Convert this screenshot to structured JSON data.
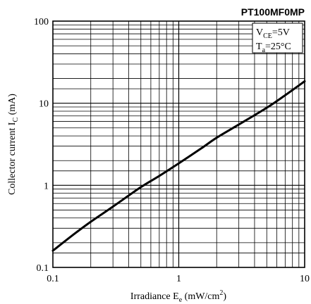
{
  "chart_data": {
    "type": "line",
    "title": "PT100MF0MP",
    "xlabel": {
      "main": "Irradiance E",
      "sub": "e",
      "unit_prefix": " (mW/cm",
      "sup": "2",
      "unit_suffix": ")"
    },
    "ylabel": {
      "main": "Collector current I",
      "sub": "C",
      "unit": " (mA)"
    },
    "x_scale": "log",
    "y_scale": "log",
    "xlim": [
      0.1,
      10
    ],
    "ylim": [
      0.1,
      100
    ],
    "x_tick_labels": [
      "0.1",
      "1",
      "10"
    ],
    "y_tick_labels": [
      "0.1",
      "1",
      "10",
      "100"
    ],
    "grid": true,
    "conditions": [
      {
        "main": "V",
        "sub": "CE",
        "rest": "=5V"
      },
      {
        "main": "T",
        "sub": "a",
        "rest": "=25°C"
      }
    ],
    "series": [
      {
        "x": [
          0.1,
          0.15,
          0.2,
          0.3,
          0.5,
          0.7,
          1,
          1.5,
          2,
          3,
          5,
          7,
          10
        ],
        "y": [
          0.16,
          0.26,
          0.36,
          0.55,
          0.95,
          1.3,
          1.85,
          2.8,
          3.8,
          5.5,
          8.8,
          12.5,
          18.5
        ]
      }
    ]
  }
}
